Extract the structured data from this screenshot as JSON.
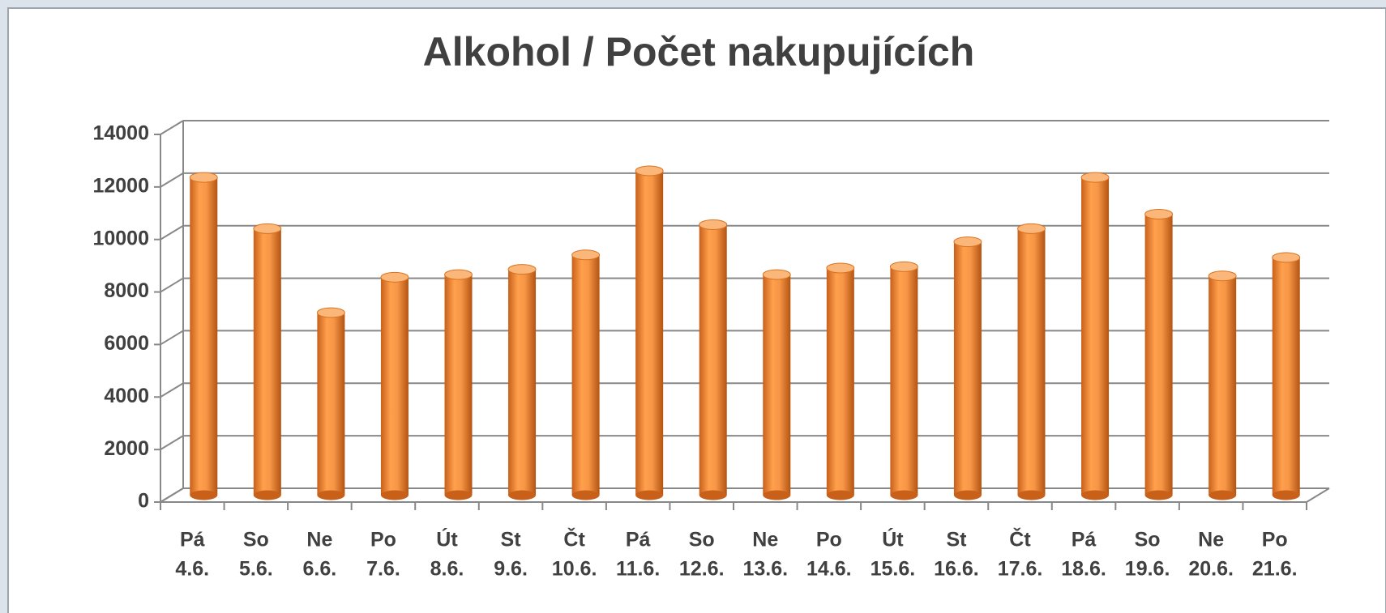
{
  "chart_data": {
    "type": "bar3d",
    "title": "Alkohol / Počet nakupujících",
    "categories": [
      [
        "Pá",
        "4.6."
      ],
      [
        "So",
        "5.6."
      ],
      [
        "Ne",
        "6.6."
      ],
      [
        "Po",
        "7.6."
      ],
      [
        "Út",
        "8.6."
      ],
      [
        "St",
        "9.6."
      ],
      [
        "Čt",
        "10.6."
      ],
      [
        "Pá",
        "11.6."
      ],
      [
        "So",
        "12.6."
      ],
      [
        "Ne",
        "13.6."
      ],
      [
        "Po",
        "14.6."
      ],
      [
        "Út",
        "15.6."
      ],
      [
        "St",
        "16.6."
      ],
      [
        "Čt",
        "17.6."
      ],
      [
        "Pá",
        "18.6."
      ],
      [
        "So",
        "19.6."
      ],
      [
        "Ne",
        "20.6."
      ],
      [
        "Po",
        "21.6."
      ]
    ],
    "values": [
      12100,
      10150,
      6950,
      8300,
      8400,
      8600,
      9150,
      12350,
      10300,
      8400,
      8650,
      8700,
      9650,
      10150,
      12100,
      10700,
      8350,
      9050
    ],
    "color": "#f79646",
    "ylim": [
      0,
      14000
    ],
    "yticks": [
      0,
      2000,
      4000,
      6000,
      8000,
      10000,
      12000,
      14000
    ],
    "grid": true
  }
}
